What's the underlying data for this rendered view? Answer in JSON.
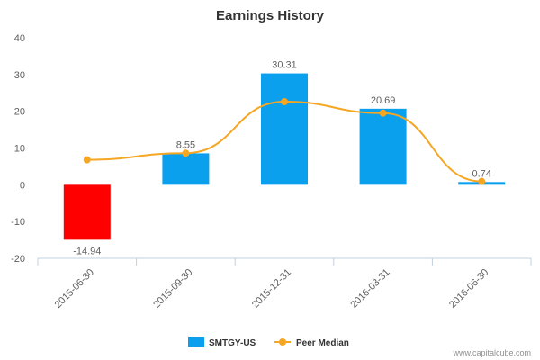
{
  "chart_data": {
    "type": "bar",
    "title": "Earnings History",
    "categories": [
      "2015-06-30",
      "2015-09-30",
      "2015-12-31",
      "2016-03-31",
      "2016-06-30"
    ],
    "series": [
      {
        "name": "SMTGY-US",
        "type": "bar",
        "values": [
          -14.94,
          8.55,
          30.31,
          20.69,
          0.74
        ],
        "data_labels": [
          "-14.94",
          "8.55",
          "30.31",
          "20.69",
          "0.74"
        ],
        "color": "#0aa0ee",
        "negative_color": "#ff0000"
      },
      {
        "name": "Peer Median",
        "type": "line",
        "values": [
          6.8,
          8.6,
          22.6,
          19.5,
          0.9
        ],
        "color": "#f5a623"
      }
    ],
    "yticks": [
      -20,
      -10,
      0,
      10,
      20,
      30,
      40
    ],
    "ylim": [
      -20,
      40
    ],
    "grid": false,
    "legend": "bottom-center"
  },
  "credit": "www.capitalcube.com"
}
